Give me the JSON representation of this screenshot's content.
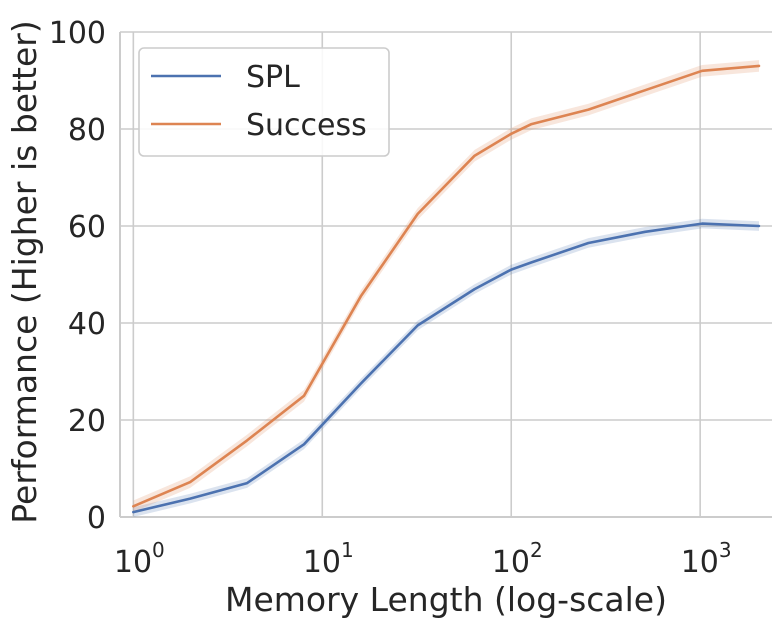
{
  "chart_data": {
    "type": "line",
    "title": "",
    "xlabel": "Memory Length (log-scale)",
    "ylabel": "Performance (Higher is better)",
    "x_scale": "log",
    "xlim": [
      0.85,
      2400
    ],
    "ylim": [
      0,
      100
    ],
    "grid": true,
    "legend_position": "top-left",
    "x_ticks": [
      {
        "value": 1,
        "base": "10",
        "exp": "0"
      },
      {
        "value": 10,
        "base": "10",
        "exp": "1"
      },
      {
        "value": 100,
        "base": "10",
        "exp": "2"
      },
      {
        "value": 1000,
        "base": "10",
        "exp": "3"
      }
    ],
    "y_ticks": [
      {
        "value": 0,
        "label": "0"
      },
      {
        "value": 20,
        "label": "20"
      },
      {
        "value": 40,
        "label": "40"
      },
      {
        "value": 60,
        "label": "60"
      },
      {
        "value": 80,
        "label": "80"
      },
      {
        "value": 100,
        "label": "100"
      }
    ],
    "x": [
      1,
      2,
      4,
      8,
      16,
      32,
      64,
      100,
      128,
      256,
      512,
      1024,
      2048
    ],
    "series": [
      {
        "name": "SPL",
        "color": "#4c72b0",
        "values": [
          1.0,
          3.8,
          7.0,
          15.0,
          27.5,
          39.5,
          47.0,
          51.0,
          52.5,
          56.5,
          58.8,
          60.5,
          60.0
        ],
        "band": 1.0
      },
      {
        "name": "Success",
        "color": "#dd8452",
        "values": [
          2.2,
          7.2,
          15.8,
          25.0,
          45.5,
          62.5,
          74.5,
          79.0,
          81.0,
          84.0,
          88.0,
          92.0,
          93.0
        ],
        "band": 1.2
      }
    ]
  }
}
